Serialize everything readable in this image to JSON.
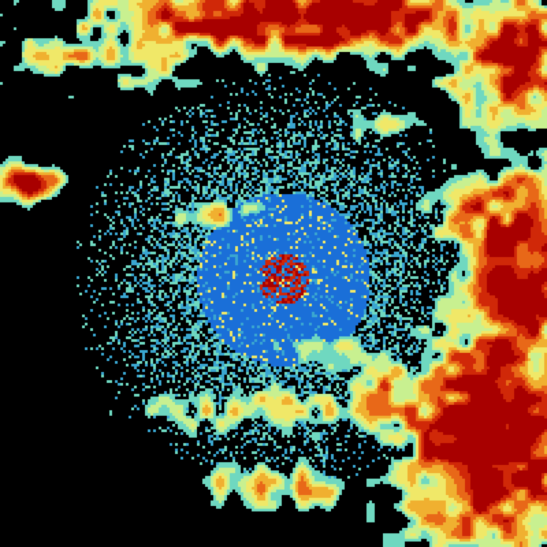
{
  "image": {
    "kind": "weather-radar-reflectivity",
    "background": "#000000",
    "palette": [
      "#1a6fd8",
      "#3aa6d0",
      "#6fd8c0",
      "#c8f090",
      "#f0e868",
      "#f0b030",
      "#e86818",
      "#d02808",
      "#a80000"
    ]
  }
}
